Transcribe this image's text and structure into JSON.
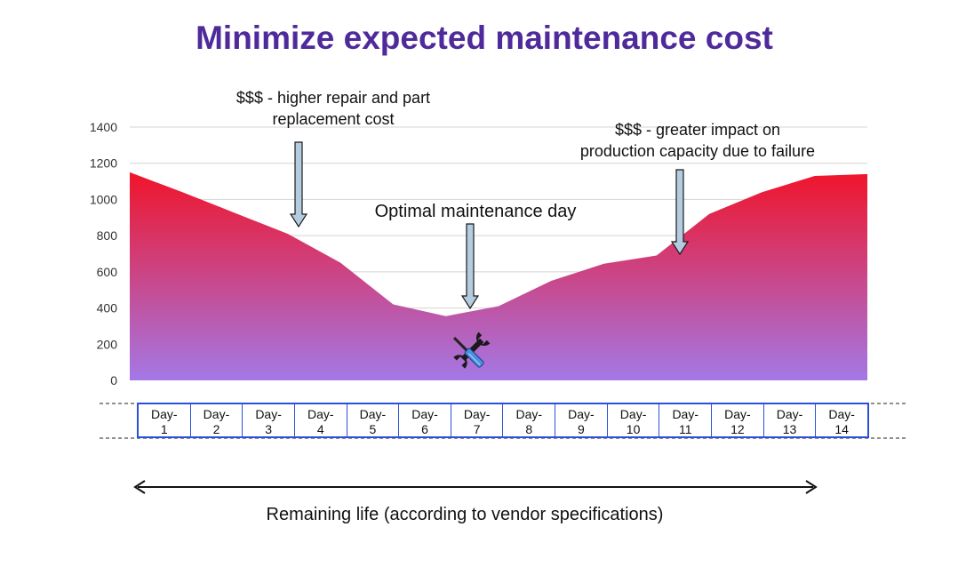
{
  "title": "Minimize expected maintenance cost",
  "annotations": {
    "repair": "$$$ - higher repair and part\nreplacement cost",
    "optimal": "Optimal maintenance day",
    "failure": "$$$ - greater impact on\nproduction capacity due to failure"
  },
  "colors": {
    "title": "#4f2a9a",
    "area_top": "#f0142a",
    "area_bottom": "#a478e6",
    "day_border": "#2b50d8",
    "arrow_fill": "#b4cce0"
  },
  "icons": {
    "tool": "wrench-screwdriver-icon"
  },
  "chart_data": {
    "type": "area",
    "categories": [
      "Day-\n1",
      "Day-\n2",
      "Day-\n3",
      "Day-\n4",
      "Day-\n5",
      "Day-\n6",
      "Day-\n7",
      "Day-\n8",
      "Day-\n9",
      "Day-\n10",
      "Day-\n11",
      "Day-\n12",
      "Day-\n13",
      "Day-\n14"
    ],
    "x": [
      0.5,
      1.5,
      2.5,
      3.5,
      4.5,
      5.5,
      6.5,
      7.5,
      8.5,
      9.5,
      10.5,
      11.5,
      12.5,
      13.5,
      14.5
    ],
    "values": [
      1150,
      1040,
      925,
      810,
      650,
      420,
      355,
      410,
      550,
      645,
      690,
      920,
      1040,
      1130,
      1140
    ],
    "yticks": [
      0,
      200,
      400,
      600,
      800,
      1000,
      1200,
      1400
    ],
    "ylim": [
      0,
      1400
    ],
    "grid": true,
    "xlabel": "Remaining life (according to vendor specifications)"
  }
}
